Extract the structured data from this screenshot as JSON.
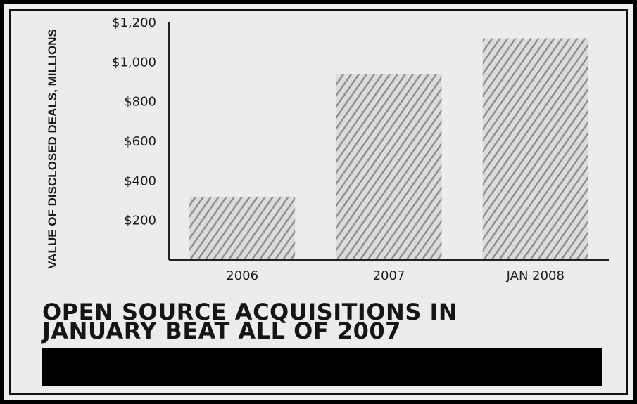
{
  "chart_data": {
    "type": "bar",
    "categories": [
      "2006",
      "2007",
      "JAN 2008"
    ],
    "values": [
      320,
      940,
      1120
    ],
    "ylabel": "VALUE OF DISCLOSED DEALS, MILLIONS",
    "xlabel": "",
    "ylim": [
      0,
      1200
    ],
    "yticks": [
      200,
      400,
      600,
      800,
      1000,
      1200
    ],
    "ytick_labels": [
      "$200",
      "$400",
      "$600",
      "$800",
      "$1,000",
      "$1,200"
    ],
    "grid": false,
    "legend": "none",
    "bar_fill": "hatched gray",
    "colors": {
      "bar_hatch": "#9a9a9a",
      "axis": "#222222",
      "text": "#1c1c1c"
    }
  },
  "caption": {
    "line1": "OPEN SOURCE ACQUISITIONS IN",
    "line2": "JANUARY BEAT ALL OF 2007"
  }
}
